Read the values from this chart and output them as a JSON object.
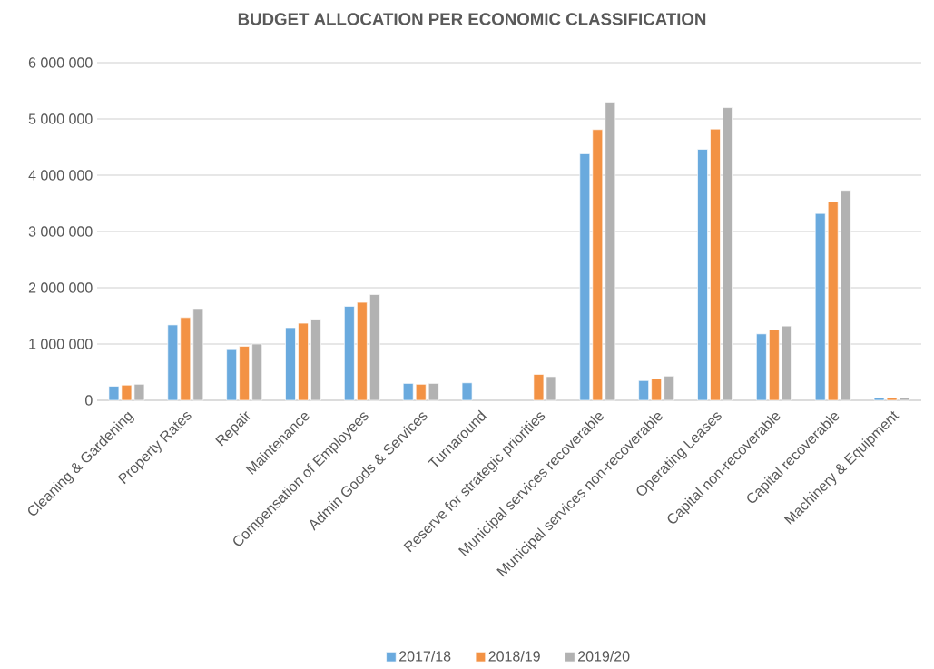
{
  "chart_data": {
    "type": "bar",
    "title": "BUDGET ALLOCATION PER ECONOMIC CLASSIFICATION",
    "categories": [
      "Cleaning & Gardening",
      "Property Rates",
      "Repair",
      "Maintenance",
      "Compensation of Employees",
      "Admin Goods & Services",
      "Turnaround",
      "Reserve for strategic priorities",
      "Municipal services recoverable",
      "Municipal services non-recoverable",
      "Operating Leases",
      "Capital non-recoverable",
      "Capital recoverable",
      "Machinery & Equipment"
    ],
    "series": [
      {
        "name": "2017/18",
        "color": "#6aaade",
        "values": [
          250000,
          1340000,
          900000,
          1290000,
          1670000,
          300000,
          310000,
          null,
          4380000,
          350000,
          4460000,
          1180000,
          3320000,
          40000
        ]
      },
      {
        "name": "2018/19",
        "color": "#f39244",
        "values": [
          270000,
          1470000,
          960000,
          1370000,
          1740000,
          285000,
          null,
          460000,
          4810000,
          380000,
          4820000,
          1250000,
          3530000,
          45000
        ]
      },
      {
        "name": "2019/20",
        "color": "#b2b2b2",
        "values": [
          285000,
          1630000,
          1000000,
          1440000,
          1880000,
          300000,
          null,
          420000,
          5300000,
          430000,
          5200000,
          1320000,
          3730000,
          45000
        ]
      }
    ],
    "ylim": [
      0,
      6000000
    ],
    "yticks": [
      {
        "value": 0,
        "label": "0"
      },
      {
        "value": 1000000,
        "label": "1 000 000"
      },
      {
        "value": 2000000,
        "label": "2 000 000"
      },
      {
        "value": 3000000,
        "label": "3 000 000"
      },
      {
        "value": 4000000,
        "label": "4 000 000"
      },
      {
        "value": 5000000,
        "label": "5 000 000"
      },
      {
        "value": 6000000,
        "label": "6 000 000"
      }
    ],
    "grid": "y",
    "legend": "bottom"
  }
}
